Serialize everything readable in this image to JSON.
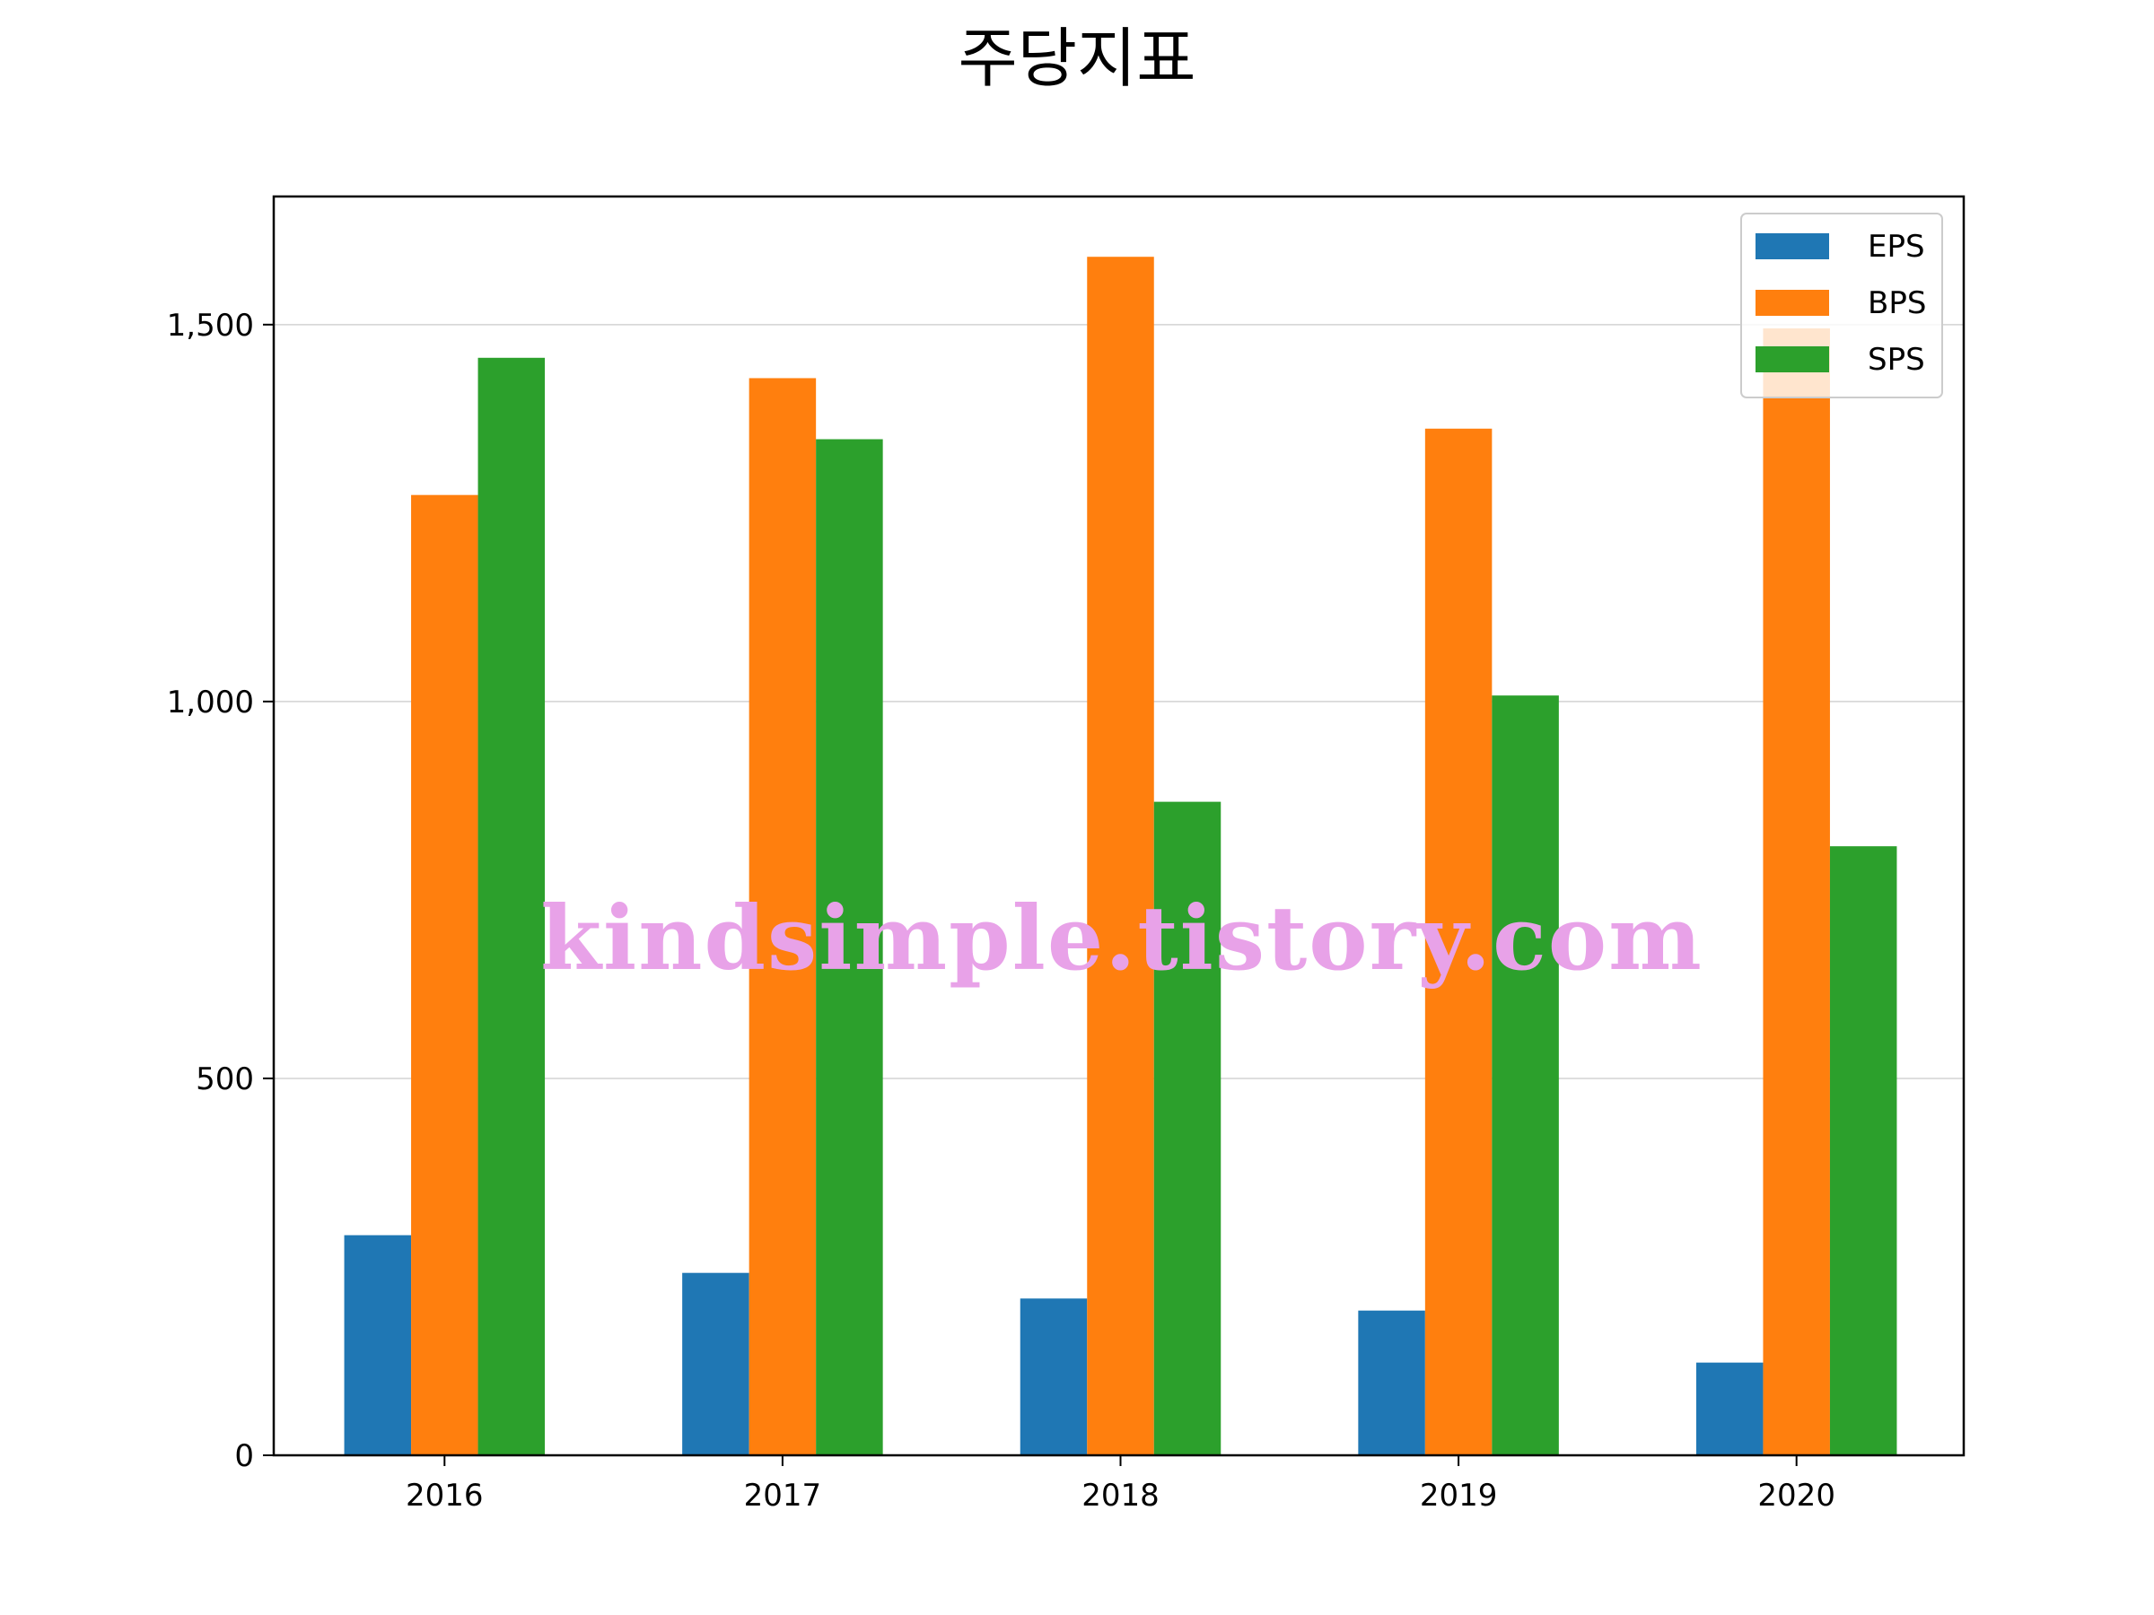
{
  "chart_data": {
    "type": "bar",
    "title": "주당지표",
    "categories": [
      "2016",
      "2017",
      "2018",
      "2019",
      "2020"
    ],
    "series": [
      {
        "name": "EPS",
        "color": "#1f77b4",
        "values": [
          292,
          242,
          208,
          192,
          123
        ]
      },
      {
        "name": "BPS",
        "color": "#ff7f0e",
        "values": [
          1274,
          1429,
          1590,
          1362,
          1495
        ]
      },
      {
        "name": "SPS",
        "color": "#2ca02c",
        "values": [
          1456,
          1348,
          867,
          1008,
          808
        ]
      }
    ],
    "yticks": [
      0,
      500,
      1000,
      1500
    ],
    "ytick_labels": [
      "0",
      "500",
      "1,000",
      "1,500"
    ],
    "ylim": [
      0,
      1670
    ],
    "xlabel": "",
    "ylabel": "",
    "grid": "y",
    "legend_position": "top-right"
  },
  "watermark": "kindsimple.tistory.com"
}
